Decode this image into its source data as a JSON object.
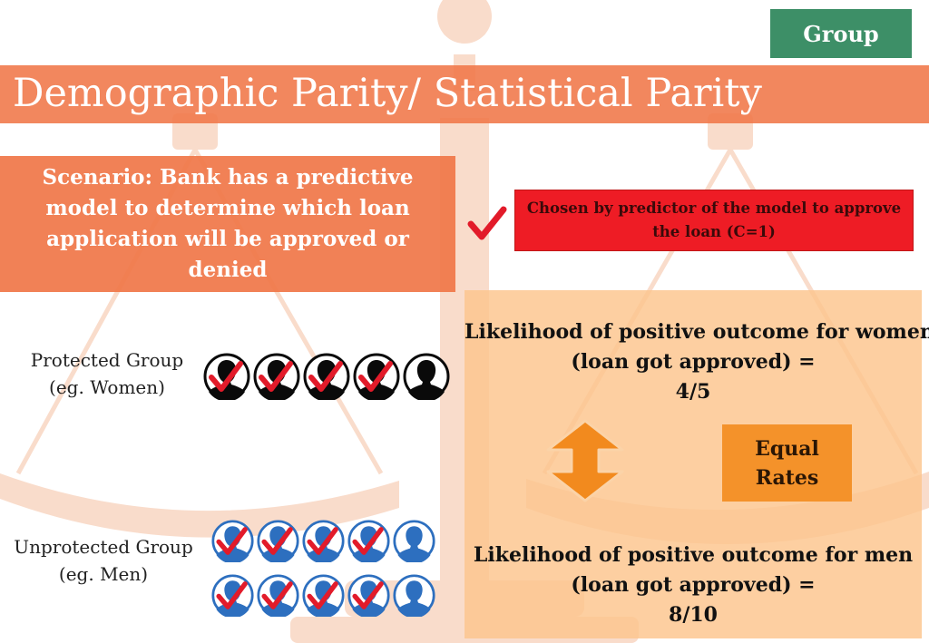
{
  "badge": "Group",
  "title": "Demographic Parity/ Statistical Parity",
  "scenario": "Scenario: Bank has a predictive model to determine which loan application will be approved or denied",
  "legend": {
    "text": "Chosen by predictor of the model to approve the loan (C=1)"
  },
  "protected": {
    "label_line1": "Protected Group",
    "label_line2": "(eg. Women)",
    "approved": 4,
    "total": 5
  },
  "unprotected": {
    "label_line1": "Unprotected Group",
    "label_line2": "(eg. Men)",
    "rows": [
      {
        "approved": 4,
        "total": 5
      },
      {
        "approved": 4,
        "total": 5
      }
    ]
  },
  "women_outcome": {
    "line1": "Likelihood of positive outcome for women",
    "line2": "(loan got approved) =",
    "ratio": "4/5"
  },
  "men_outcome": {
    "line1": "Likelihood of positive outcome for men",
    "line2": "(loan got approved) =",
    "ratio": "8/10"
  },
  "equal_rates": {
    "line1": "Equal",
    "line2": "Rates"
  },
  "colors": {
    "badge_green": "#3d8f67",
    "orange": "#f07648",
    "legend_red": "#ee1c25",
    "check_red": "#e21b2a",
    "women_icon": "#0a0a0a",
    "men_icon": "#2d6fbf",
    "panel_peach": "#fcc48c",
    "equal_orange": "#f4922a"
  }
}
